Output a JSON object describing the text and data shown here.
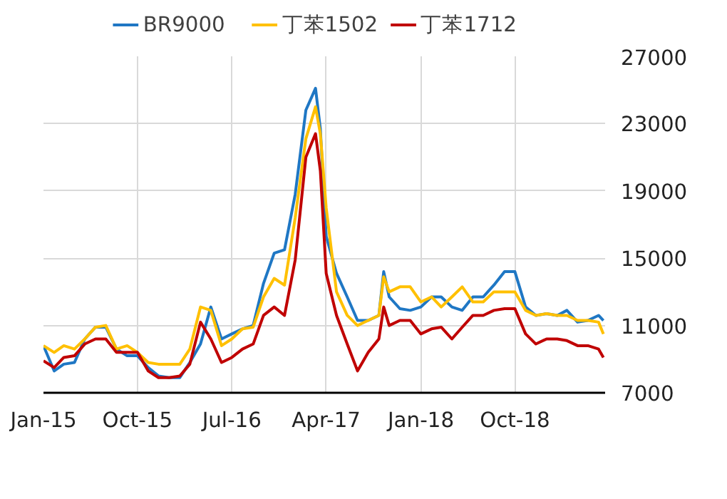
{
  "chart_data": {
    "type": "line",
    "x": [
      "2015-01",
      "2015-02",
      "2015-03",
      "2015-04",
      "2015-05",
      "2015-06",
      "2015-07",
      "2015-08",
      "2015-09",
      "2015-10",
      "2015-11",
      "2015-12",
      "2016-01",
      "2016-02",
      "2016-03",
      "2016-04",
      "2016-05",
      "2016-06",
      "2016-07",
      "2016-08",
      "2016-09",
      "2016-10",
      "2016-11",
      "2016-12",
      "2017-01",
      "2017-02",
      "2017-03-01",
      "2017-03-15",
      "2017-04",
      "2017-05",
      "2017-06",
      "2017-07",
      "2017-08",
      "2017-09",
      "2017-09-15",
      "2017-10",
      "2017-11",
      "2017-12",
      "2018-01",
      "2018-02",
      "2018-03",
      "2018-04",
      "2018-05",
      "2018-06",
      "2018-07",
      "2018-08",
      "2018-09",
      "2018-10",
      "2018-11",
      "2018-12",
      "2019-01",
      "2019-02",
      "2019-03",
      "2019-04",
      "2019-05",
      "2019-06",
      "2019-06-15"
    ],
    "series": [
      {
        "name": "BR9000",
        "color": "#1f77c4",
        "values": [
          9800,
          8300,
          8700,
          8800,
          10200,
          10900,
          10900,
          9600,
          9200,
          9200,
          8500,
          8000,
          7900,
          7900,
          8800,
          9900,
          12100,
          10200,
          10500,
          10800,
          11000,
          13500,
          15300,
          15500,
          18800,
          23800,
          25100,
          22700,
          16300,
          14100,
          12700,
          11300,
          11300,
          11600,
          14200,
          12700,
          12000,
          11900,
          12100,
          12700,
          12700,
          12100,
          11900,
          12700,
          12700,
          13400,
          14200,
          14200,
          12100,
          11600,
          11700,
          11600,
          11900,
          11200,
          11300,
          11600,
          11300
        ]
      },
      {
        "name": "丁苯1502",
        "color": "#ffc000",
        "values": [
          9800,
          9400,
          9800,
          9600,
          10200,
          10900,
          11000,
          9600,
          9800,
          9400,
          8800,
          8700,
          8700,
          8700,
          9600,
          12100,
          11900,
          9800,
          10200,
          10800,
          10900,
          12700,
          13800,
          13400,
          17400,
          22100,
          24000,
          22400,
          18000,
          13000,
          11600,
          11000,
          11300,
          11600,
          13900,
          13000,
          13300,
          13300,
          12400,
          12700,
          12100,
          12700,
          13300,
          12400,
          12400,
          13000,
          13000,
          13000,
          11900,
          11600,
          11700,
          11600,
          11600,
          11300,
          11300,
          11200,
          10500
        ]
      },
      {
        "name": "丁苯1712",
        "color": "#c00000",
        "values": [
          8900,
          8500,
          9100,
          9200,
          9900,
          10200,
          10200,
          9400,
          9400,
          9400,
          8300,
          7900,
          7900,
          8000,
          8700,
          11200,
          10200,
          8800,
          9100,
          9600,
          9900,
          11600,
          12100,
          11600,
          14900,
          21000,
          22400,
          20200,
          14100,
          11600,
          9900,
          8300,
          9400,
          10200,
          12100,
          11000,
          11300,
          11300,
          10500,
          10800,
          10900,
          10200,
          10900,
          11600,
          11600,
          11900,
          12000,
          12000,
          10500,
          9900,
          10200,
          10200,
          10100,
          9800,
          9800,
          9600,
          9100
        ]
      }
    ],
    "xlim": [
      "2015-01-01",
      "2019-06-20"
    ],
    "xticks": [
      {
        "value": "2015-01-01",
        "label": "Jan-15"
      },
      {
        "value": "2015-10-01",
        "label": "Oct-15"
      },
      {
        "value": "2016-07-01",
        "label": "Jul-16"
      },
      {
        "value": "2017-04-01",
        "label": "Apr-17"
      },
      {
        "value": "2018-01-01",
        "label": "Jan-18"
      },
      {
        "value": "2018-10-01",
        "label": "Oct-18"
      }
    ],
    "ylim": [
      7000,
      27000
    ],
    "yticks": [
      7000,
      11000,
      15000,
      19000,
      23000,
      27000
    ],
    "grid": true,
    "legend": "top"
  }
}
